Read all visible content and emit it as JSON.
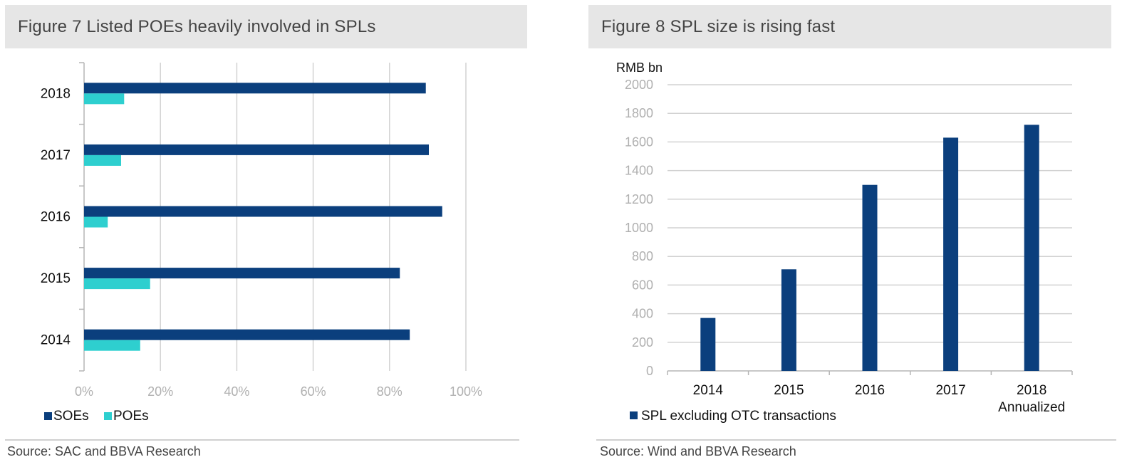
{
  "colors": {
    "soe": "#0b3f7d",
    "poe": "#2ecfcf",
    "grid": "#d2d2d2",
    "axis": "#b5b5b5",
    "bar": "#0b3f7d",
    "tick": "#b0b0b0"
  },
  "figure7": {
    "title": "Figure 7 Listed POEs heavily involved in SPLs",
    "source": "Source: SAC and BBVA Research"
  },
  "figure8": {
    "title": "Figure 8 SPL size is rising fast",
    "source": "Source: Wind and BBVA Research"
  },
  "chart_data": [
    {
      "type": "bar",
      "orientation": "horizontal",
      "categories": [
        "2018",
        "2017",
        "2016",
        "2015",
        "2014"
      ],
      "series": [
        {
          "name": "SOEs",
          "values": [
            89.5,
            90.3,
            93.8,
            82.7,
            85.3
          ]
        },
        {
          "name": "POEs",
          "values": [
            10.5,
            9.7,
            6.2,
            17.3,
            14.7
          ]
        }
      ],
      "xlim": [
        0,
        100
      ],
      "xticks": [
        "0%",
        "20%",
        "40%",
        "60%",
        "80%",
        "100%"
      ],
      "grid": true,
      "legend_position": "bottom-left"
    },
    {
      "type": "bar",
      "categories": [
        "2014",
        "2015",
        "2016",
        "2017",
        "2018 Annualized"
      ],
      "category_lines": [
        [
          "2014"
        ],
        [
          "2015"
        ],
        [
          "2016"
        ],
        [
          "2017"
        ],
        [
          "2018",
          "Annualized"
        ]
      ],
      "series": [
        {
          "name": "SPL excluding OTC transactions",
          "values": [
            370,
            710,
            1300,
            1630,
            1720
          ]
        }
      ],
      "ylabel": "RMB bn",
      "ylim": [
        0,
        2000
      ],
      "yticks": [
        "0",
        "200",
        "400",
        "600",
        "800",
        "1000",
        "1200",
        "1400",
        "1600",
        "1800",
        "2000"
      ],
      "grid": true,
      "legend_position": "bottom-left"
    }
  ]
}
